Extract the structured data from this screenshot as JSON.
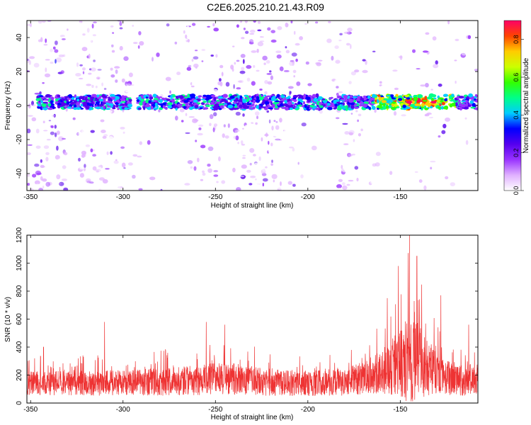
{
  "title": "C2E6.2025.210.21.43.R09",
  "colors": {
    "snr_line": "#ee3333",
    "axis": "#000000",
    "colorbar": [
      "#ffffff",
      "#e0b0ff",
      "#9933ff",
      "#5500ee",
      "#0000ff",
      "#00ccff",
      "#00ff88",
      "#33ff00",
      "#ccff00",
      "#ffcc00",
      "#ff4400",
      "#ff0066"
    ]
  },
  "chart_data": [
    {
      "type": "heatmap",
      "title": "C2E6.2025.210.21.43.R09",
      "xlabel": "Height of straight line (km)",
      "ylabel": "Frequency (Hz)",
      "xlim": [
        -352,
        -108
      ],
      "ylim": [
        -50,
        50
      ],
      "x_ticks": [
        -350,
        -300,
        -250,
        -200,
        -150
      ],
      "y_ticks": [
        40,
        20,
        0,
        -20,
        -40
      ],
      "colorbar": {
        "label": "Normalized spectral amplitude",
        "range": [
          0,
          0.9
        ],
        "ticks": [
          0,
          0.2,
          0.4,
          0.6,
          0.8
        ],
        "tick_labels": [
          "0.0",
          "0.2",
          "0.4",
          "0.6",
          "0.8"
        ]
      },
      "features": {
        "band_center_hz": 2,
        "band_halfwidth_hz": 4,
        "peak_height_km": [
          -145,
          -132
        ],
        "peak_value": 0.9
      }
    },
    {
      "type": "line",
      "xlabel": "Height of straight line (km)",
      "ylabel": "SNR (10 * v/v)",
      "xlim": [
        -352,
        -108
      ],
      "ylim": [
        0,
        1200
      ],
      "x_ticks": [
        -350,
        -300,
        -250,
        -200,
        -150
      ],
      "y_ticks": [
        0,
        200,
        400,
        600,
        800,
        1000,
        1200
      ],
      "envelope": {
        "x": [
          -352,
          -340,
          -320,
          -300,
          -280,
          -260,
          -250,
          -240,
          -220,
          -200,
          -180,
          -170,
          -160,
          -150,
          -145,
          -140,
          -130,
          -120,
          -108
        ],
        "baseline": [
          150,
          150,
          150,
          155,
          160,
          175,
          185,
          185,
          160,
          150,
          160,
          190,
          240,
          310,
          360,
          330,
          230,
          170,
          180
        ],
        "spread": [
          190,
          190,
          200,
          200,
          220,
          240,
          250,
          250,
          220,
          200,
          220,
          260,
          340,
          550,
          800,
          600,
          320,
          240,
          260
        ]
      },
      "notable_peaks": [
        {
          "x": -343,
          "y": 400
        },
        {
          "x": -310,
          "y": 580
        },
        {
          "x": -255,
          "y": 580
        },
        {
          "x": -245,
          "y": 560
        },
        {
          "x": -157,
          "y": 750
        },
        {
          "x": -151,
          "y": 980
        },
        {
          "x": -145,
          "y": 1200
        },
        {
          "x": -141,
          "y": 1050
        },
        {
          "x": -128,
          "y": 770
        },
        {
          "x": -113,
          "y": 560
        }
      ]
    }
  ]
}
